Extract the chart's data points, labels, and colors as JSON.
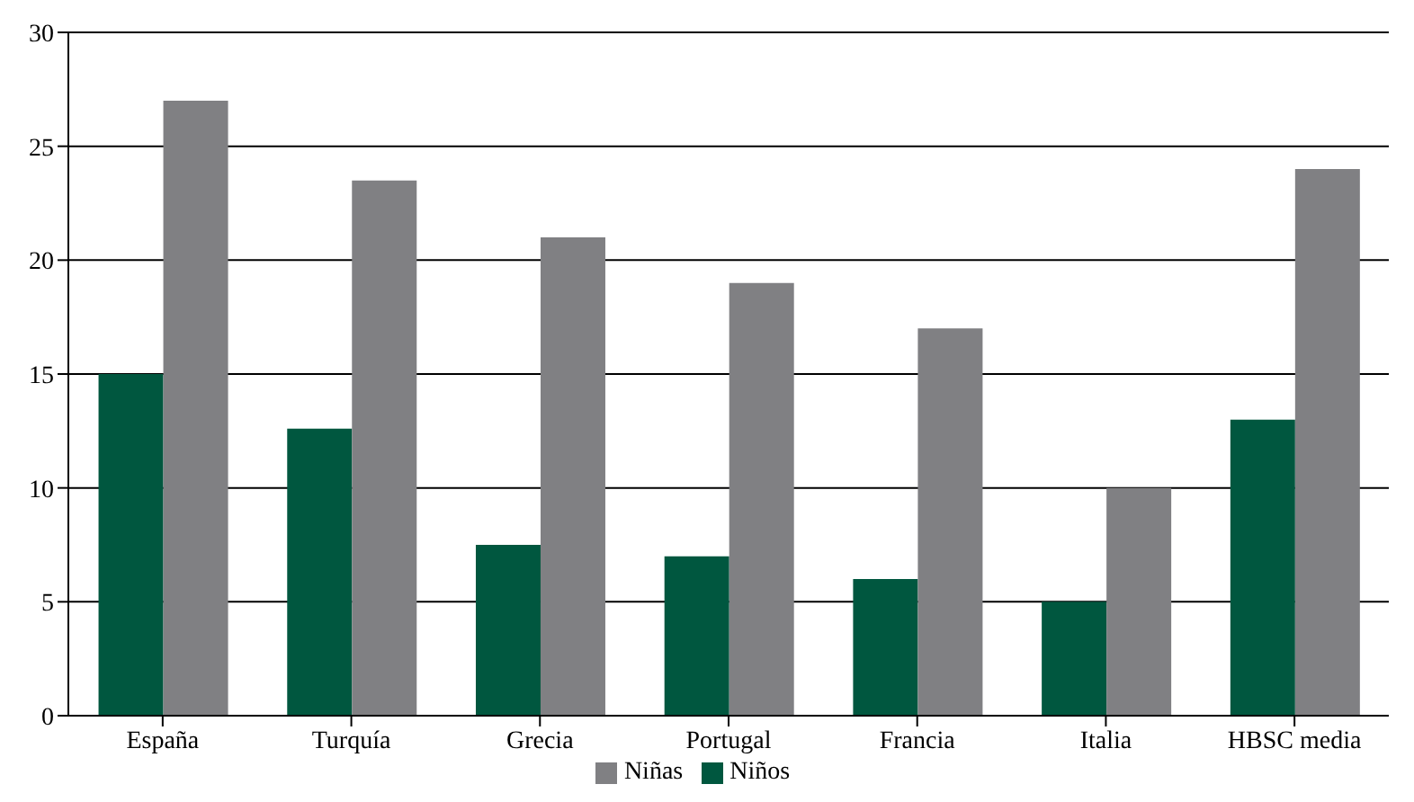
{
  "chart_data": {
    "type": "bar",
    "categories": [
      "España",
      "Turquía",
      "Grecia",
      "Portugal",
      "Francia",
      "Italia",
      "HBSC media"
    ],
    "series": [
      {
        "name": "Niños",
        "color": "#00573f",
        "values": [
          15,
          12.6,
          7.5,
          7,
          6,
          5,
          13
        ]
      },
      {
        "name": "Niñas",
        "color": "#808083",
        "values": [
          27,
          23.5,
          21,
          19,
          17,
          10,
          24
        ]
      }
    ],
    "ylim": [
      0,
      30
    ],
    "yticks": [
      0,
      5,
      10,
      15,
      20,
      25,
      30
    ],
    "grid": "y",
    "legend": "bottom"
  }
}
